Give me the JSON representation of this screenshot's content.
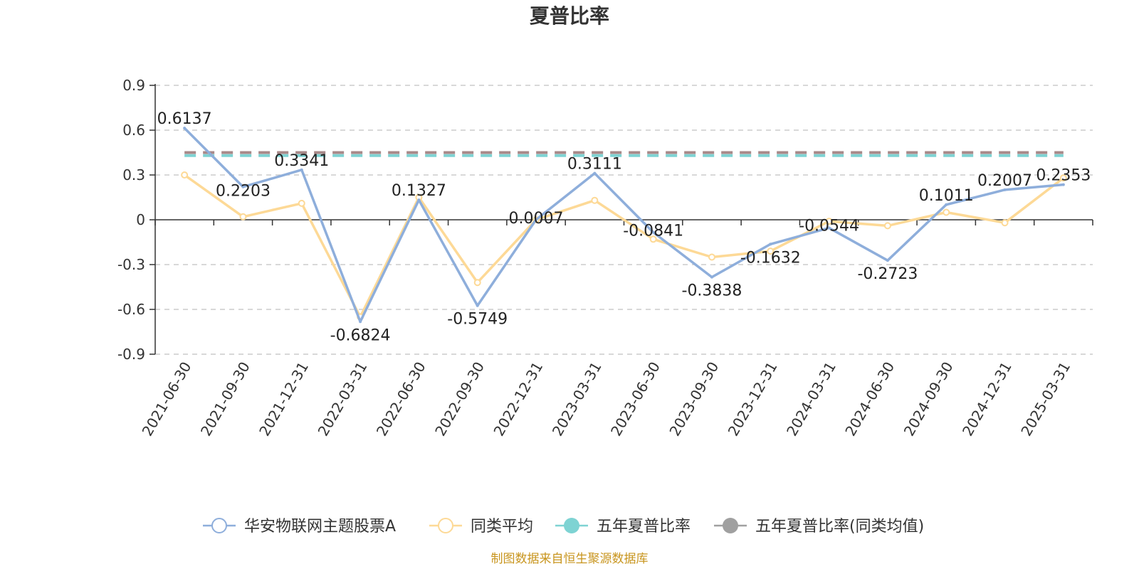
{
  "chart_data": {
    "type": "line",
    "title": "夏普比率",
    "categories": [
      "2021-06-30",
      "2021-09-30",
      "2021-12-31",
      "2022-03-31",
      "2022-06-30",
      "2022-09-30",
      "2022-12-31",
      "2023-03-31",
      "2023-06-30",
      "2023-09-30",
      "2023-12-31",
      "2024-03-31",
      "2024-06-30",
      "2024-09-30",
      "2024-12-31",
      "2025-03-31"
    ],
    "y_ticks": [
      "0.9",
      "0.6",
      "0.3",
      "0",
      "-0.3",
      "-0.6",
      "-0.9"
    ],
    "ylim": [
      -0.9,
      0.9
    ],
    "grid": true,
    "legend_position": "bottom",
    "series": [
      {
        "name": "华安物联网主题股票A",
        "color": "#8eaedb",
        "values": [
          0.6137,
          0.2203,
          0.3341,
          -0.6824,
          0.1327,
          -0.5749,
          0.0007,
          0.3111,
          -0.0841,
          -0.3838,
          -0.1632,
          -0.0544,
          -0.2723,
          0.1011,
          0.2007,
          0.2353
        ],
        "labels": [
          "0.6137",
          "0.2203",
          "0.3341",
          "-0.6824",
          "0.1327",
          "-0.5749",
          "0.0007",
          "0.3111",
          "-0.0841",
          "-0.3838",
          "-0.1632",
          "-0.0544",
          "-0.2723",
          "0.1011",
          "0.2007",
          "0.2353"
        ]
      },
      {
        "name": "同类平均",
        "color": "#fdd996",
        "values": [
          0.3,
          0.02,
          0.11,
          -0.65,
          0.15,
          -0.42,
          0.0,
          0.13,
          -0.13,
          -0.25,
          -0.21,
          -0.01,
          -0.04,
          0.05,
          -0.02,
          0.28
        ]
      },
      {
        "name": "五年夏普比率",
        "color": "#7ed3d3",
        "values": [
          0.43,
          0.43,
          0.43,
          0.43,
          0.43,
          0.43,
          0.43,
          0.43,
          0.43,
          0.43,
          0.43,
          0.43,
          0.43,
          0.43,
          0.43,
          0.43
        ]
      },
      {
        "name": "五年夏普比率(同类均值)",
        "color": "#a0a0a0",
        "values": [
          0.45,
          0.45,
          0.45,
          0.45,
          0.45,
          0.45,
          0.45,
          0.45,
          0.45,
          0.45,
          0.45,
          0.45,
          0.45,
          0.45,
          0.45,
          0.45
        ]
      }
    ],
    "source_note": "制图数据来自恒生聚源数据库"
  },
  "colors": {
    "dash_lines": [
      "#7ed3d3",
      "#a88a8a"
    ],
    "source": "#c8951e"
  }
}
